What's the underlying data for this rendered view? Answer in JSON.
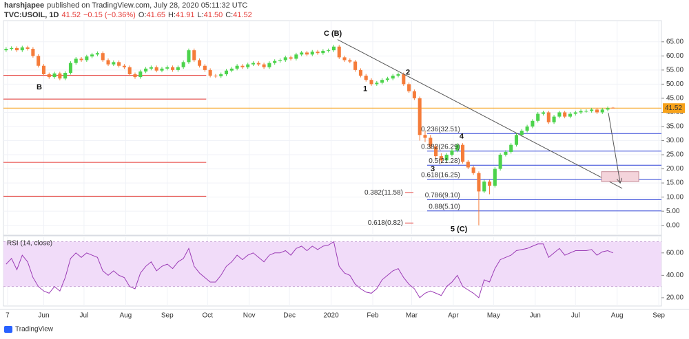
{
  "header": {
    "author": "harshjapee",
    "published": "published on TradingView.com, July 28, 2020 05:11:32 UTC"
  },
  "chart_data": {
    "type": "candlestick",
    "symbol": "TVC:USOIL, 1D",
    "last": "41.52",
    "change": "−0.15 (−0.36%)",
    "ohlc_legend": [
      {
        "label": "O:",
        "value": "41.65"
      },
      {
        "label": "H:",
        "value": "41.91"
      },
      {
        "label": "L:",
        "value": "41.50"
      },
      {
        "label": "C:",
        "value": "41.52"
      }
    ],
    "up_color": "#4cd34c",
    "down_color": "#f57c3a",
    "x": [
      -28,
      -24,
      -20,
      -16,
      -12,
      -8,
      -4,
      0,
      4,
      8,
      12,
      16,
      20,
      24,
      28,
      32,
      36,
      40,
      44,
      48,
      52,
      56,
      60,
      64,
      68,
      72,
      76,
      80,
      84,
      88,
      92,
      96,
      100,
      104,
      108,
      112,
      116,
      120,
      124,
      128,
      132,
      136,
      140,
      144,
      148,
      152,
      156,
      160,
      164,
      168,
      172,
      176,
      180,
      184,
      188,
      192,
      196,
      200,
      204,
      208,
      212,
      216,
      220,
      224,
      228,
      232,
      236,
      240,
      244,
      248,
      252,
      256,
      260,
      264,
      268,
      272,
      276,
      280,
      284,
      288,
      292,
      296,
      300,
      304,
      308,
      312,
      316,
      320,
      324,
      328,
      332,
      336,
      340,
      344,
      348,
      352,
      356,
      360,
      364,
      368,
      372,
      376,
      380,
      384,
      388,
      392,
      396,
      400,
      404,
      408,
      412,
      416,
      420,
      424
    ],
    "ohlc": [
      [
        62.0,
        63.1,
        61.4,
        62.5
      ],
      [
        62.5,
        63.4,
        61.9,
        62.8
      ],
      [
        62.8,
        63.4,
        61.4,
        62.0
      ],
      [
        62.0,
        63.6,
        61.4,
        63.0
      ],
      [
        63.0,
        63.6,
        61.9,
        62.5
      ],
      [
        62.5,
        63.1,
        59.4,
        60.0
      ],
      [
        60.0,
        60.6,
        55.9,
        56.5
      ],
      [
        56.5,
        57.1,
        52.9,
        53.5
      ],
      [
        53.5,
        54.1,
        51.9,
        52.5
      ],
      [
        52.5,
        54.4,
        51.9,
        53.8
      ],
      [
        53.8,
        54.4,
        51.4,
        52.0
      ],
      [
        52.0,
        54.6,
        51.4,
        54.0
      ],
      [
        54.0,
        58.1,
        53.4,
        57.5
      ],
      [
        57.5,
        59.6,
        56.9,
        59.0
      ],
      [
        59.0,
        59.6,
        57.9,
        58.5
      ],
      [
        58.5,
        60.4,
        57.9,
        59.8
      ],
      [
        59.8,
        61.1,
        59.2,
        60.5
      ],
      [
        60.5,
        61.6,
        59.9,
        61.0
      ],
      [
        61.0,
        61.6,
        57.9,
        58.5
      ],
      [
        58.5,
        59.1,
        56.4,
        57.0
      ],
      [
        57.0,
        58.4,
        56.4,
        57.8
      ],
      [
        57.8,
        58.4,
        55.9,
        56.5
      ],
      [
        56.5,
        57.1,
        55.4,
        56.0
      ],
      [
        56.0,
        56.6,
        52.9,
        53.5
      ],
      [
        53.5,
        54.1,
        51.9,
        52.5
      ],
      [
        52.5,
        55.1,
        51.9,
        54.5
      ],
      [
        54.5,
        56.1,
        53.9,
        55.5
      ],
      [
        55.5,
        56.6,
        54.9,
        56.0
      ],
      [
        56.0,
        56.6,
        54.2,
        54.8
      ],
      [
        54.8,
        56.1,
        54.2,
        55.5
      ],
      [
        55.5,
        56.6,
        54.9,
        56.0
      ],
      [
        56.0,
        56.6,
        54.4,
        55.0
      ],
      [
        55.0,
        56.6,
        54.4,
        56.0
      ],
      [
        56.0,
        58.4,
        55.4,
        57.8
      ],
      [
        57.8,
        62.6,
        57.2,
        62.0
      ],
      [
        62.0,
        62.6,
        57.9,
        58.5
      ],
      [
        58.5,
        59.1,
        55.9,
        56.5
      ],
      [
        56.5,
        57.1,
        54.4,
        55.0
      ],
      [
        55.0,
        55.6,
        52.4,
        53.0
      ],
      [
        53.0,
        53.6,
        52.2,
        52.8
      ],
      [
        52.8,
        54.1,
        52.2,
        53.5
      ],
      [
        53.5,
        55.4,
        52.9,
        54.8
      ],
      [
        54.8,
        56.1,
        54.2,
        55.5
      ],
      [
        55.5,
        57.1,
        54.9,
        56.5
      ],
      [
        56.5,
        57.1,
        55.4,
        56.0
      ],
      [
        56.0,
        57.6,
        55.4,
        57.0
      ],
      [
        57.0,
        58.1,
        56.4,
        57.5
      ],
      [
        57.5,
        58.1,
        56.4,
        57.0
      ],
      [
        57.0,
        57.6,
        55.4,
        56.0
      ],
      [
        56.0,
        58.1,
        55.4,
        57.5
      ],
      [
        57.5,
        58.8,
        56.9,
        58.2
      ],
      [
        58.2,
        59.1,
        57.6,
        58.5
      ],
      [
        58.5,
        60.1,
        57.9,
        59.5
      ],
      [
        59.5,
        60.1,
        58.4,
        59.0
      ],
      [
        59.0,
        61.1,
        58.4,
        60.5
      ],
      [
        60.5,
        61.8,
        59.9,
        61.2
      ],
      [
        61.2,
        61.8,
        59.9,
        60.5
      ],
      [
        60.5,
        62.1,
        59.9,
        61.5
      ],
      [
        61.5,
        62.1,
        60.4,
        61.0
      ],
      [
        61.0,
        62.4,
        60.4,
        61.8
      ],
      [
        61.8,
        62.6,
        61.2,
        62.0
      ],
      [
        62.0,
        63.9,
        61.4,
        63.3
      ],
      [
        63.3,
        63.9,
        58.9,
        59.5
      ],
      [
        59.5,
        60.1,
        57.9,
        58.5
      ],
      [
        58.5,
        59.1,
        57.4,
        58.0
      ],
      [
        58.0,
        58.6,
        54.4,
        55.0
      ],
      [
        55.0,
        55.6,
        52.4,
        53.0
      ],
      [
        53.0,
        53.6,
        50.9,
        51.5
      ],
      [
        51.5,
        52.1,
        49.4,
        50.0
      ],
      [
        50.0,
        51.1,
        49.4,
        50.5
      ],
      [
        50.5,
        52.1,
        49.9,
        51.5
      ],
      [
        51.5,
        52.6,
        50.9,
        52.0
      ],
      [
        52.0,
        53.6,
        51.4,
        53.0
      ],
      [
        53.0,
        54.1,
        52.4,
        53.5
      ],
      [
        53.5,
        54.1,
        49.4,
        50.0
      ],
      [
        50.0,
        50.6,
        46.9,
        47.5
      ],
      [
        47.5,
        48.1,
        44.4,
        45.0
      ],
      [
        45.0,
        45.6,
        30.0,
        32.0
      ],
      [
        32.0,
        33.5,
        29.5,
        31.0
      ],
      [
        31.0,
        32.0,
        27.0,
        28.0
      ],
      [
        28.0,
        28.6,
        23.5,
        24.5
      ],
      [
        24.5,
        25.5,
        22.0,
        23.0
      ],
      [
        23.0,
        25.6,
        22.4,
        25.0
      ],
      [
        25.0,
        27.1,
        24.4,
        26.5
      ],
      [
        26.5,
        29.1,
        25.9,
        28.5
      ],
      [
        28.5,
        29.1,
        21.9,
        22.5
      ],
      [
        22.5,
        23.1,
        19.9,
        20.5
      ],
      [
        20.5,
        21.1,
        17.9,
        18.5
      ],
      [
        18.5,
        19.1,
        0.0,
        12.0
      ],
      [
        12.0,
        16.1,
        11.4,
        15.5
      ],
      [
        15.5,
        16.1,
        11.0,
        14.0
      ],
      [
        14.0,
        20.6,
        13.4,
        20.0
      ],
      [
        20.0,
        25.6,
        19.4,
        25.0
      ],
      [
        25.0,
        26.6,
        24.4,
        26.0
      ],
      [
        26.0,
        29.1,
        25.4,
        28.5
      ],
      [
        28.5,
        32.6,
        27.9,
        32.0
      ],
      [
        32.0,
        34.1,
        31.4,
        33.5
      ],
      [
        33.5,
        35.6,
        32.9,
        35.0
      ],
      [
        35.0,
        37.6,
        34.4,
        37.0
      ],
      [
        37.0,
        40.1,
        36.4,
        39.5
      ],
      [
        39.5,
        40.6,
        38.9,
        40.0
      ],
      [
        40.0,
        40.6,
        35.9,
        36.5
      ],
      [
        36.5,
        39.1,
        35.9,
        38.5
      ],
      [
        38.5,
        40.6,
        37.9,
        40.0
      ],
      [
        40.0,
        40.6,
        37.9,
        38.5
      ],
      [
        38.5,
        40.1,
        37.9,
        39.5
      ],
      [
        39.5,
        40.6,
        38.9,
        40.0
      ],
      [
        40.0,
        41.1,
        39.4,
        40.5
      ],
      [
        40.5,
        41.1,
        39.9,
        40.5
      ],
      [
        40.5,
        41.6,
        39.9,
        41.0
      ],
      [
        41.0,
        41.6,
        39.4,
        40.0
      ],
      [
        40.0,
        41.6,
        39.4,
        41.0
      ],
      [
        41.0,
        42.1,
        40.4,
        41.5
      ],
      [
        41.65,
        41.91,
        41.5,
        41.52
      ]
    ],
    "xlim": [
      -30,
      460
    ],
    "xticks": [
      {
        "value": -27,
        "label": "7"
      },
      {
        "value": 0,
        "label": "Jun"
      },
      {
        "value": 30,
        "label": "Jul"
      },
      {
        "value": 61,
        "label": "Aug"
      },
      {
        "value": 92,
        "label": "Sep"
      },
      {
        "value": 122,
        "label": "Oct"
      },
      {
        "value": 153,
        "label": "Nov"
      },
      {
        "value": 183,
        "label": "Dec"
      },
      {
        "value": 214,
        "label": "2020"
      },
      {
        "value": 245,
        "label": "Feb"
      },
      {
        "value": 274,
        "label": "Mar"
      },
      {
        "value": 305,
        "label": "Apr"
      },
      {
        "value": 335,
        "label": "May"
      },
      {
        "value": 366,
        "label": "Jun"
      },
      {
        "value": 396,
        "label": "Jul"
      },
      {
        "value": 427,
        "label": "Aug"
      },
      {
        "value": 458,
        "label": "Sep"
      }
    ],
    "ylim": [
      -3,
      72.5
    ],
    "yticks": [
      {
        "value": 0,
        "label": "0.00"
      },
      {
        "value": 5,
        "label": "5.00"
      },
      {
        "value": 10,
        "label": "10.00"
      },
      {
        "value": 15,
        "label": "15.00"
      },
      {
        "value": 20,
        "label": "20.00"
      },
      {
        "value": 25,
        "label": "25.00"
      },
      {
        "value": 30,
        "label": "30.00"
      },
      {
        "value": 35,
        "label": "35.00"
      },
      {
        "value": 40,
        "label": "40.00"
      },
      {
        "value": 45,
        "label": "45.00"
      },
      {
        "value": 50,
        "label": "50.00"
      },
      {
        "value": 55,
        "label": "55.00"
      },
      {
        "value": 60,
        "label": "60.00"
      },
      {
        "value": 65,
        "label": "65.00"
      }
    ],
    "grid": true,
    "last_price": {
      "value": 41.52,
      "label": "41.52",
      "color": "#f7a21b"
    },
    "levels": [
      {
        "value": 53.1,
        "x": [
          -30,
          121
        ]
      },
      {
        "value": 44.7,
        "x": [
          -30,
          121
        ]
      },
      {
        "value": 22.3,
        "x": [
          -30,
          121
        ]
      },
      {
        "value": 10.3,
        "x": [
          -30,
          121
        ]
      }
    ],
    "level_color": "#e53935",
    "fib_color": "#2a3fd6",
    "fib": [
      {
        "value": 32.51,
        "label": "0.236(32.51)",
        "x0": 285.5
      },
      {
        "value": 26.29,
        "label": "0.382(26.29)",
        "x0": 285.5
      },
      {
        "value": 21.28,
        "label": "0.5(21.28)",
        "x0": 285.5
      },
      {
        "value": 16.25,
        "label": "0.618(16.25)",
        "x0": 285.5
      },
      {
        "value": 9.1,
        "label": "0.786(9.10)",
        "x0": 285.5
      },
      {
        "value": 5.1,
        "label": "0.88(5.10)",
        "x0": 285.5
      }
    ],
    "extensions": [
      {
        "value": 11.58,
        "label": "0.382(11.58)",
        "x": [
          269.1,
          275.3
        ]
      },
      {
        "value": 0.82,
        "label": "0.618(0.82)",
        "x": [
          269.1,
          275.3
        ]
      }
    ],
    "trendline": {
      "x": [
        218.8,
        430.8
      ],
      "y": [
        65.8,
        13.1
      ]
    },
    "arrow": {
      "x": [
        420.5,
        429.2
      ],
      "y": [
        39.8,
        15.2
      ]
    },
    "box": {
      "x": [
        415.4,
        443.1
      ],
      "y": [
        15.5,
        19.0
      ]
    },
    "annotations": [
      {
        "text": "C (B)",
        "x": 215.3,
        "y": 67.9
      },
      {
        "text": "2",
        "x": 271.2,
        "y": 54.1
      },
      {
        "text": "1",
        "x": 239.4,
        "y": 48.2
      },
      {
        "text": "B",
        "x": -3.3,
        "y": 48.9
      },
      {
        "text": "4",
        "x": 311.2,
        "y": 31.4
      },
      {
        "text": "3",
        "x": 289.7,
        "y": 19.9
      },
      {
        "text": "5 (C)",
        "x": 309.2,
        "y": -1.4
      }
    ],
    "rsi": {
      "title": "RSI (14, close)",
      "color": "#9b3bb5",
      "band": [
        30,
        70
      ],
      "band_color": "#f1dcf9",
      "ylim": [
        12.6,
        74
      ],
      "yticks": [
        {
          "value": 20,
          "label": "20.00"
        },
        {
          "value": 40,
          "label": "40.00"
        },
        {
          "value": 60,
          "label": "60.00"
        }
      ],
      "values": [
        50,
        55,
        45,
        58,
        52,
        38,
        30,
        26,
        24,
        30,
        26,
        38,
        55,
        60,
        56,
        60,
        58,
        56,
        44,
        40,
        44,
        40,
        38,
        30,
        28,
        42,
        48,
        52,
        44,
        48,
        50,
        46,
        52,
        55,
        64,
        48,
        42,
        38,
        34,
        34,
        40,
        48,
        52,
        58,
        54,
        58,
        60,
        56,
        52,
        58,
        60,
        60,
        62,
        58,
        64,
        66,
        62,
        66,
        63,
        66,
        67,
        70,
        48,
        42,
        40,
        32,
        28,
        25,
        24,
        28,
        36,
        40,
        44,
        46,
        38,
        32,
        28,
        20,
        24,
        26,
        24,
        22,
        30,
        34,
        40,
        30,
        27,
        24,
        20,
        36,
        34,
        46,
        54,
        56,
        58,
        62,
        63,
        64,
        66,
        68,
        68,
        56,
        60,
        64,
        58,
        60,
        62,
        62,
        62,
        63,
        58,
        61,
        62,
        60
      ]
    }
  },
  "footer": {
    "brand": "TradingView"
  }
}
